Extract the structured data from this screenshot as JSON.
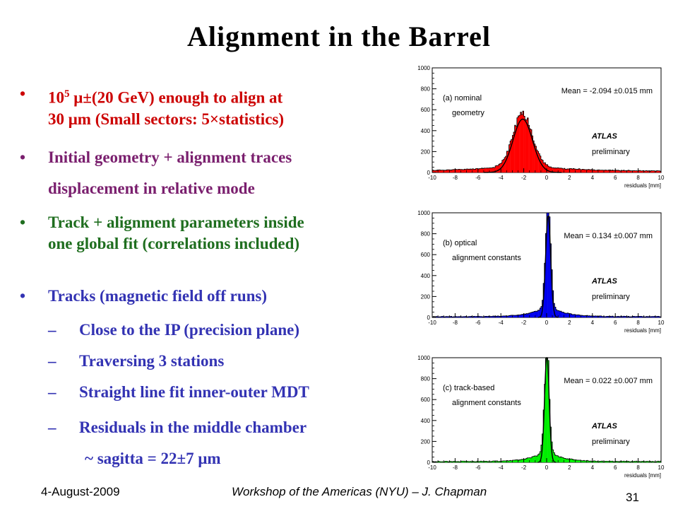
{
  "title": "Alignment in the Barrel",
  "bullets": [
    {
      "sup_base": "10",
      "sup_exp": "5",
      "rest_line1": " μ±(20 GeV) enough to align at",
      "line2": "30 μm (Small sectors: 5×statistics)",
      "color": "#cc0000"
    },
    {
      "line1": "Initial geometry + alignment traces",
      "line2": "displacement in relative mode",
      "color": "#7a1f6e"
    },
    {
      "line1": "Track + alignment parameters inside",
      "line2": "one global fit (correlations included)",
      "color": "#1f6e1f"
    },
    {
      "line1": "Tracks (magnetic field off runs)",
      "color": "#3333b3"
    }
  ],
  "sub_bullets": [
    "Close to the IP (precision plane)",
    "Traversing 3 stations",
    "Straight line fit inner-outer MDT",
    "Residuals in the middle chamber"
  ],
  "sagitta": "~ sagitta = 22±7 μm",
  "footer": {
    "date": "4-August-2009",
    "center": "Workshop of the Americas (NYU) – J. Chapman",
    "page": "31"
  },
  "chart_data": [
    {
      "type": "bar",
      "label_line1": "(a) nominal",
      "label_line2": "geometry",
      "mean_text": "Mean = -2.094 ±0.015 mm",
      "atlas": "ATLAS",
      "preliminary": "preliminary",
      "xlabel": "residuals [mm]",
      "xlim": [
        -10,
        10
      ],
      "ylim": [
        0,
        1000
      ],
      "xticks": [
        "-10",
        "-8",
        "-6",
        "-4",
        "-2",
        "0",
        "2",
        "4",
        "6",
        "8",
        "10"
      ],
      "yticks": [
        "0",
        "200",
        "400",
        "600",
        "800",
        "1000"
      ],
      "fill": "#ff0000",
      "peak": 500,
      "mu": -2.09,
      "sigma": 0.85,
      "background": 8,
      "fit": true
    },
    {
      "type": "bar",
      "label_line1": "(b) optical",
      "label_line2": "alignment constants",
      "mean_text": "Mean = 0.134 ±0.007 mm",
      "atlas": "ATLAS",
      "preliminary": "preliminary",
      "xlabel": "residuals [mm]",
      "xlim": [
        -10,
        10
      ],
      "ylim": [
        0,
        1000
      ],
      "xticks": [
        "-10",
        "-8",
        "-6",
        "-4",
        "-2",
        "0",
        "2",
        "4",
        "6",
        "8",
        "10"
      ],
      "yticks": [
        "0",
        "200",
        "400",
        "600",
        "800",
        "1000"
      ],
      "fill": "#0000ee",
      "peak": 950,
      "mu": 0.13,
      "sigma": 0.22,
      "background": 8,
      "fit": true
    },
    {
      "type": "bar",
      "label_line1": "(c) track-based",
      "label_line2": "alignment constants",
      "mean_text": "Mean = 0.022 ±0.007 mm",
      "atlas": "ATLAS",
      "preliminary": "preliminary",
      "xlabel": "residuals [mm]",
      "xlim": [
        -10,
        10
      ],
      "ylim": [
        0,
        1000
      ],
      "xticks": [
        "-10",
        "-8",
        "-6",
        "-4",
        "-2",
        "0",
        "2",
        "4",
        "6",
        "8",
        "10"
      ],
      "yticks": [
        "0",
        "200",
        "400",
        "600",
        "800",
        "1000"
      ],
      "fill": "#00ee00",
      "peak": 1000,
      "mu": 0.02,
      "sigma": 0.2,
      "background": 8,
      "fit": true
    }
  ]
}
